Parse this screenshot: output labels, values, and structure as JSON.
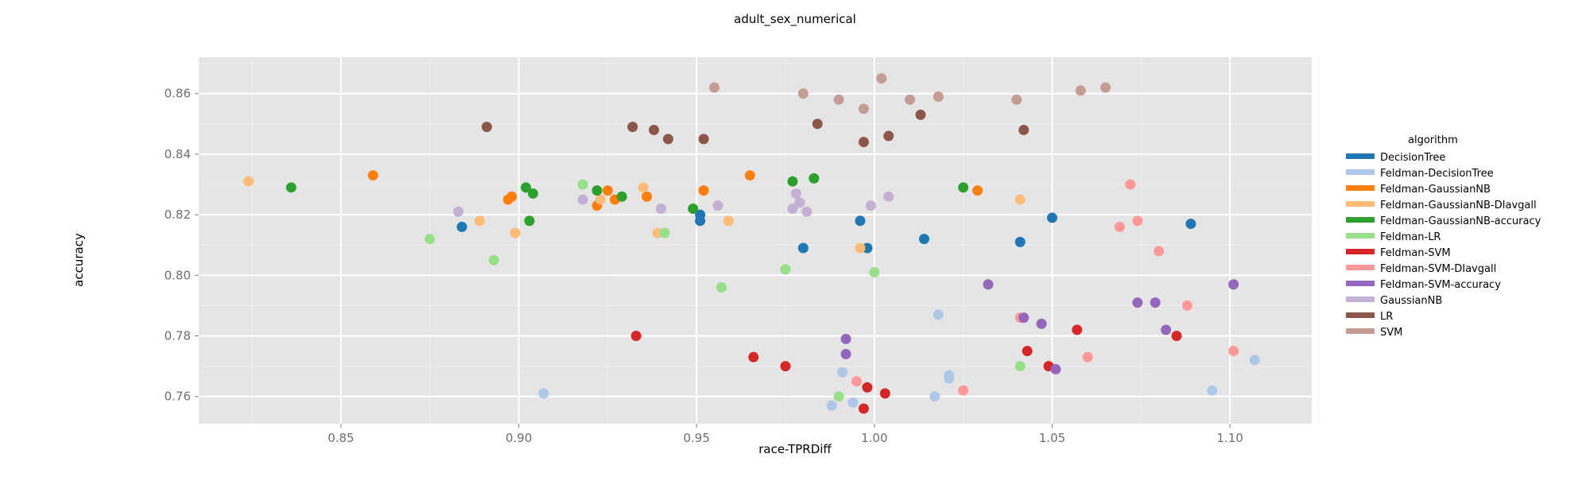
{
  "chart_data": {
    "type": "scatter",
    "title": "adult_sex_numerical",
    "xlabel": "race-TPRDiff",
    "ylabel": "accuracy",
    "xlim": [
      0.81,
      1.123
    ],
    "ylim": [
      0.751,
      0.872
    ],
    "xticks": [
      "0.85",
      "0.90",
      "0.95",
      "1.00",
      "1.05",
      "1.10"
    ],
    "yticks": [
      "0.76",
      "0.78",
      "0.80",
      "0.82",
      "0.84",
      "0.86"
    ],
    "grid": true,
    "legend": {
      "title": "algorithm",
      "position": "right"
    },
    "series": [
      {
        "name": "DecisionTree",
        "color": "#1f77b4",
        "points": [
          [
            0.884,
            0.816
          ],
          [
            0.951,
            0.82
          ],
          [
            0.951,
            0.818
          ],
          [
            0.996,
            0.818
          ],
          [
            0.98,
            0.809
          ],
          [
            0.998,
            0.809
          ],
          [
            1.014,
            0.812
          ],
          [
            1.041,
            0.811
          ],
          [
            1.05,
            0.819
          ],
          [
            1.089,
            0.817
          ]
        ]
      },
      {
        "name": "Feldman-DecisionTree",
        "color": "#aec7e8",
        "points": [
          [
            0.907,
            0.761
          ],
          [
            0.988,
            0.757
          ],
          [
            0.991,
            0.768
          ],
          [
            0.994,
            0.758
          ],
          [
            1.017,
            0.76
          ],
          [
            1.018,
            0.787
          ],
          [
            1.021,
            0.766
          ],
          [
            1.021,
            0.767
          ],
          [
            1.095,
            0.762
          ],
          [
            1.107,
            0.772
          ]
        ]
      },
      {
        "name": "Feldman-GaussianNB",
        "color": "#ff7f0e",
        "points": [
          [
            0.859,
            0.833
          ],
          [
            0.897,
            0.825
          ],
          [
            0.898,
            0.826
          ],
          [
            0.922,
            0.823
          ],
          [
            0.925,
            0.828
          ],
          [
            0.927,
            0.825
          ],
          [
            0.936,
            0.826
          ],
          [
            0.952,
            0.828
          ],
          [
            0.965,
            0.833
          ],
          [
            1.029,
            0.828
          ]
        ]
      },
      {
        "name": "Feldman-GaussianNB-DIavgall",
        "color": "#ffbb78",
        "points": [
          [
            0.824,
            0.831
          ],
          [
            0.889,
            0.818
          ],
          [
            0.899,
            0.814
          ],
          [
            0.923,
            0.825
          ],
          [
            0.935,
            0.829
          ],
          [
            0.939,
            0.814
          ],
          [
            0.959,
            0.818
          ],
          [
            0.996,
            0.809
          ],
          [
            1.041,
            0.825
          ]
        ]
      },
      {
        "name": "Feldman-GaussianNB-accuracy",
        "color": "#2ca02c",
        "points": [
          [
            0.836,
            0.829
          ],
          [
            0.902,
            0.829
          ],
          [
            0.903,
            0.818
          ],
          [
            0.904,
            0.827
          ],
          [
            0.922,
            0.828
          ],
          [
            0.929,
            0.826
          ],
          [
            0.949,
            0.822
          ],
          [
            0.977,
            0.831
          ],
          [
            0.983,
            0.832
          ],
          [
            1.025,
            0.829
          ]
        ]
      },
      {
        "name": "Feldman-LR",
        "color": "#98df8a",
        "points": [
          [
            0.875,
            0.812
          ],
          [
            0.893,
            0.805
          ],
          [
            0.918,
            0.83
          ],
          [
            0.941,
            0.814
          ],
          [
            0.957,
            0.796
          ],
          [
            0.975,
            0.802
          ],
          [
            0.99,
            0.76
          ],
          [
            1.0,
            0.801
          ],
          [
            1.041,
            0.77
          ]
        ]
      },
      {
        "name": "Feldman-SVM",
        "color": "#d62728",
        "points": [
          [
            0.933,
            0.78
          ],
          [
            0.966,
            0.773
          ],
          [
            0.975,
            0.77
          ],
          [
            0.997,
            0.756
          ],
          [
            0.998,
            0.763
          ],
          [
            1.003,
            0.761
          ],
          [
            1.043,
            0.775
          ],
          [
            1.049,
            0.77
          ],
          [
            1.057,
            0.782
          ],
          [
            1.085,
            0.78
          ]
        ]
      },
      {
        "name": "Feldman-SVM-DIavgall",
        "color": "#ff9896",
        "points": [
          [
            0.995,
            0.765
          ],
          [
            1.025,
            0.762
          ],
          [
            1.041,
            0.786
          ],
          [
            1.06,
            0.773
          ],
          [
            1.069,
            0.816
          ],
          [
            1.072,
            0.83
          ],
          [
            1.074,
            0.818
          ],
          [
            1.08,
            0.808
          ],
          [
            1.088,
            0.79
          ],
          [
            1.101,
            0.775
          ]
        ]
      },
      {
        "name": "Feldman-SVM-accuracy",
        "color": "#9467bd",
        "points": [
          [
            0.992,
            0.779
          ],
          [
            0.992,
            0.774
          ],
          [
            1.032,
            0.797
          ],
          [
            1.042,
            0.786
          ],
          [
            1.047,
            0.784
          ],
          [
            1.051,
            0.769
          ],
          [
            1.074,
            0.791
          ],
          [
            1.079,
            0.791
          ],
          [
            1.082,
            0.782
          ],
          [
            1.101,
            0.797
          ]
        ]
      },
      {
        "name": "GaussianNB",
        "color": "#c5b0d5",
        "points": [
          [
            0.883,
            0.821
          ],
          [
            0.918,
            0.825
          ],
          [
            0.94,
            0.822
          ],
          [
            0.956,
            0.823
          ],
          [
            0.977,
            0.822
          ],
          [
            0.978,
            0.827
          ],
          [
            0.979,
            0.824
          ],
          [
            0.981,
            0.821
          ],
          [
            0.999,
            0.823
          ],
          [
            1.004,
            0.826
          ]
        ]
      },
      {
        "name": "LR",
        "color": "#8c564b",
        "points": [
          [
            0.891,
            0.849
          ],
          [
            0.932,
            0.849
          ],
          [
            0.938,
            0.848
          ],
          [
            0.942,
            0.845
          ],
          [
            0.952,
            0.845
          ],
          [
            0.984,
            0.85
          ],
          [
            0.997,
            0.844
          ],
          [
            1.004,
            0.846
          ],
          [
            1.013,
            0.853
          ],
          [
            1.042,
            0.848
          ]
        ]
      },
      {
        "name": "SVM",
        "color": "#c49c94",
        "points": [
          [
            0.955,
            0.862
          ],
          [
            0.98,
            0.86
          ],
          [
            0.99,
            0.858
          ],
          [
            0.997,
            0.855
          ],
          [
            1.002,
            0.865
          ],
          [
            1.01,
            0.858
          ],
          [
            1.018,
            0.859
          ],
          [
            1.04,
            0.858
          ],
          [
            1.058,
            0.861
          ],
          [
            1.065,
            0.862
          ]
        ]
      }
    ]
  }
}
